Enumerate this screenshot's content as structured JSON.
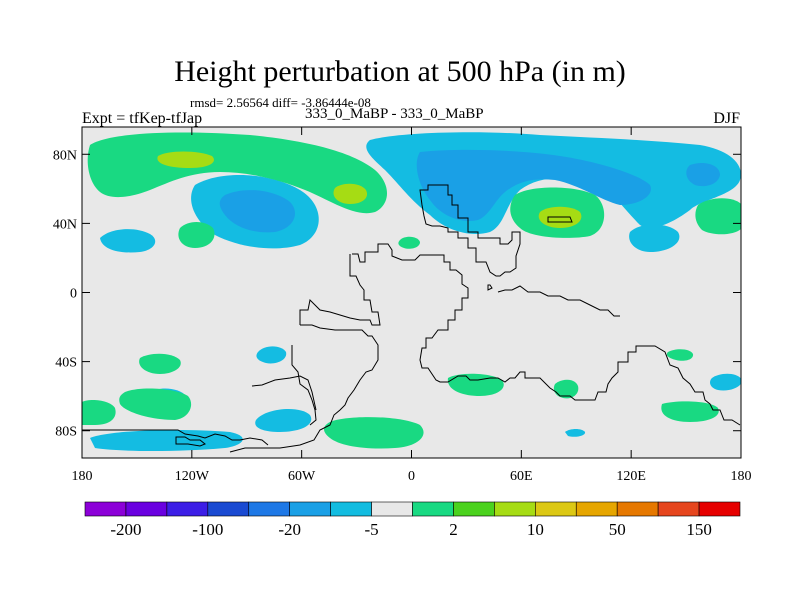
{
  "title": "Height perturbation at 500 hPa (in m)",
  "stats": "rmsd= 2.56564 diff= -3.86444e-08",
  "left_label": "Expt = tfKep-tfJap",
  "center_label": "333_0_MaBP - 333_0_MaBP",
  "right_label": "DJF",
  "y_ticks": [
    {
      "label": "80N",
      "lat": 80
    },
    {
      "label": "40N",
      "lat": 40
    },
    {
      "label": "0",
      "lat": 0
    },
    {
      "label": "40S",
      "lat": -40
    },
    {
      "label": "80S",
      "lat": -80
    }
  ],
  "x_ticks": [
    {
      "label": "180",
      "lon": -180
    },
    {
      "label": "120W",
      "lon": -120
    },
    {
      "label": "60W",
      "lon": -60
    },
    {
      "label": "0",
      "lon": 0
    },
    {
      "label": "60E",
      "lon": 60
    },
    {
      "label": "120E",
      "lon": 120
    },
    {
      "label": "180",
      "lon": 180
    }
  ],
  "colorbar": {
    "colors": [
      "#8c00d8",
      "#6a00e0",
      "#3c1ee6",
      "#1a4ad2",
      "#1e78e6",
      "#1aa0e6",
      "#12bce0",
      "#e8e8e8",
      "#19d982",
      "#4bd21e",
      "#a6dc14",
      "#dcc814",
      "#e6a600",
      "#e67800",
      "#e6461e",
      "#e60000"
    ],
    "labels": [
      {
        "text": "-200",
        "index": 1
      },
      {
        "text": "-100",
        "index": 3
      },
      {
        "text": "-20",
        "index": 5
      },
      {
        "text": "-5",
        "index": 7
      },
      {
        "text": "2",
        "index": 9
      },
      {
        "text": "10",
        "index": 11
      },
      {
        "text": "50",
        "index": 13
      },
      {
        "text": "150",
        "index": 15
      }
    ]
  },
  "map_colors": {
    "background": "#e8e8e8",
    "light_blue": "#14bce2",
    "mid_blue": "#1aa0e6",
    "green": "#19d982",
    "yellow_green": "#a6dc14"
  }
}
